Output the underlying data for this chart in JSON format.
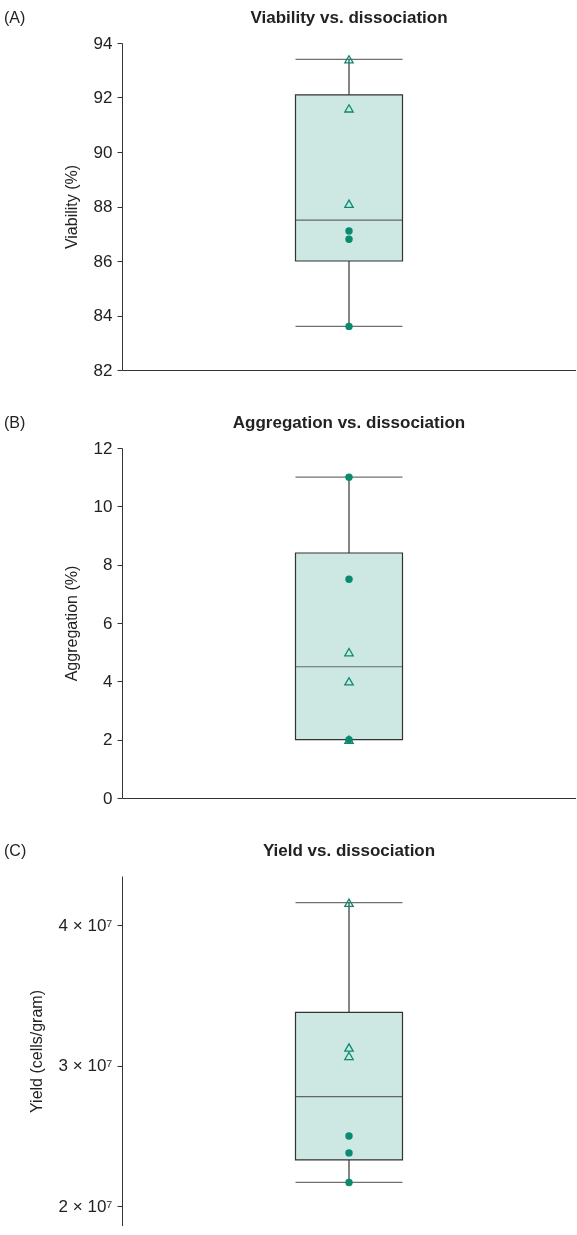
{
  "chart_data": [
    {
      "type": "box",
      "title": "Viability vs. dissociation",
      "ylabel": "Viability (%)",
      "annotations": [
        "(A)"
      ],
      "categories": [
        null
      ],
      "ylim": [
        82,
        94
      ],
      "yticks": [
        82,
        84,
        86,
        88,
        90,
        92,
        94
      ],
      "grid": false,
      "tick_labels": "y",
      "series": [
        {
          "type": "box",
          "color": "#cde7e2",
          "boxes": [
            {
              "low": 83.6,
              "q1": 86.0,
              "median": 87.5,
              "q3": 92.1,
              "high": 93.4
            }
          ]
        },
        {
          "type": "scatter",
          "marker": "triangle",
          "color": "#0a8a6e",
          "x": [
            null,
            null,
            null
          ],
          "values": [
            93.4,
            91.6,
            88.1
          ]
        },
        {
          "type": "scatter",
          "marker": "circle",
          "color": "#0a8a6e",
          "x": [
            null,
            null,
            null
          ],
          "values": [
            87.1,
            86.8,
            83.6
          ]
        }
      ]
    },
    {
      "type": "box",
      "title": "Aggregation vs. dissociation",
      "ylabel": "Aggregation (%)",
      "annotations": [
        "(B)"
      ],
      "categories": [
        null
      ],
      "ylim": [
        0,
        12
      ],
      "yticks": [
        0,
        2,
        4,
        6,
        8,
        10,
        12
      ],
      "grid": false,
      "tick_labels": "y",
      "series": [
        {
          "type": "box",
          "color": "#cde7e2",
          "boxes": [
            {
              "low": 2.0,
              "q1": 2.0,
              "median": 4.5,
              "q3": 8.4,
              "high": 11.0
            }
          ]
        },
        {
          "type": "scatter",
          "marker": "triangle",
          "color": "#0a8a6e",
          "x": [
            null,
            null,
            null
          ],
          "values": [
            5.0,
            4.0,
            2.0
          ]
        },
        {
          "type": "scatter",
          "marker": "circle",
          "color": "#0a8a6e",
          "x": [
            null,
            null,
            null
          ],
          "values": [
            11.0,
            7.5,
            2.0
          ]
        }
      ]
    },
    {
      "type": "box",
      "title": "Yield vs. dissociation",
      "ylabel": "Yield (cells/gram)",
      "annotations": [
        "(C)"
      ],
      "categories": [
        null
      ],
      "ylim": [
        18600000,
        43500000
      ],
      "yticks": [
        {
          "value": 20000000,
          "label": "2 × 10⁷"
        },
        {
          "value": 30000000,
          "label": "3 × 10⁷"
        },
        {
          "value": 40000000,
          "label": "4 × 10⁷"
        }
      ],
      "grid": false,
      "tick_labels": "y",
      "series": [
        {
          "type": "box",
          "color": "#cde7e2",
          "boxes": [
            {
              "low": 21700000,
              "q1": 23300000,
              "median": 27800000,
              "q3": 33800000,
              "high": 41600000
            }
          ]
        },
        {
          "type": "scatter",
          "marker": "triangle",
          "color": "#0a8a6e",
          "x": [
            null,
            null,
            null
          ],
          "values": [
            41600000,
            31300000,
            30700000
          ]
        },
        {
          "type": "scatter",
          "marker": "circle",
          "color": "#0a8a6e",
          "x": [
            null,
            null,
            null
          ],
          "values": [
            25000000,
            23800000,
            21700000
          ]
        }
      ]
    }
  ]
}
